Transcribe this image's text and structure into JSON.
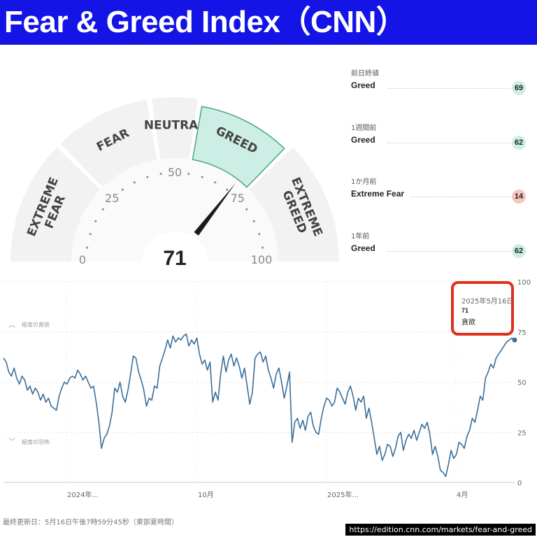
{
  "title": "Fear & Greed Index（CNN）",
  "gauge": {
    "value": 71,
    "value_text": "71",
    "segments": [
      {
        "label": "EXTREME FEAR",
        "lines": [
          "EXTREME",
          "FEAR"
        ],
        "active": false
      },
      {
        "label": "FEAR",
        "lines": [
          "FEAR"
        ],
        "active": false
      },
      {
        "label": "NEUTRAL",
        "lines": [
          "NEUTRAL"
        ],
        "active": false
      },
      {
        "label": "GREED",
        "lines": [
          "GREED"
        ],
        "active": true
      },
      {
        "label": "EXTREME GREED",
        "lines": [
          "EXTREME",
          "GREED"
        ],
        "active": false
      }
    ],
    "scale_labels": [
      "0",
      "25",
      "50",
      "75",
      "100"
    ],
    "colors": {
      "active_fill": "#cdeee4",
      "active_stroke": "#4aa57f",
      "segment": "#f2f2f2",
      "needle": "#1a1a1a"
    }
  },
  "stats": [
    {
      "label": "前日終値",
      "value": "Greed",
      "score": "69",
      "color": "#cdeee4"
    },
    {
      "label": "1週間前",
      "value": "Greed",
      "score": "62",
      "color": "#cdeee4"
    },
    {
      "label": "1か月前",
      "value": "Extreme Fear",
      "score": "14",
      "color": "#f7c6bf"
    },
    {
      "label": "1年前",
      "value": "Greed",
      "score": "62",
      "color": "#cdeee4"
    }
  ],
  "chart_data": {
    "type": "line",
    "series": [
      {
        "values": [
          62,
          60,
          55,
          53,
          57,
          52,
          49,
          53,
          51,
          46,
          48,
          44,
          47,
          45,
          41,
          44,
          40,
          42,
          38,
          37,
          36,
          43,
          47,
          50,
          49,
          52,
          53,
          52,
          56,
          54,
          51,
          53,
          50,
          47,
          48,
          40,
          30,
          17,
          22,
          24,
          28,
          35,
          47,
          45,
          50,
          43,
          40,
          46,
          54,
          63,
          62,
          55,
          51,
          46,
          38,
          42,
          41,
          48,
          47,
          58,
          62,
          66,
          71,
          67,
          73,
          70,
          72,
          71,
          73,
          74,
          68,
          71,
          69,
          72,
          64,
          59,
          61,
          56,
          60,
          40,
          45,
          41,
          54,
          63,
          55,
          61,
          64,
          58,
          62,
          58,
          52,
          57,
          48,
          39,
          45,
          62,
          64,
          65,
          60,
          63,
          56,
          52,
          47,
          54,
          57,
          50,
          42,
          48,
          55,
          20,
          30,
          32,
          27,
          31,
          26,
          33,
          35,
          28,
          25,
          24,
          32,
          38,
          42,
          41,
          38,
          40,
          47,
          45,
          42,
          39,
          45,
          48,
          43,
          36,
          42,
          40,
          43,
          32,
          37,
          30,
          22,
          14,
          18,
          11,
          14,
          19,
          18,
          13,
          17,
          23,
          25,
          16,
          21,
          24,
          22,
          26,
          21,
          25,
          29,
          27,
          30,
          24,
          14,
          18,
          13,
          6,
          5,
          3,
          9,
          16,
          12,
          14,
          20,
          19,
          17,
          23,
          26,
          32,
          30,
          36,
          43,
          41,
          52,
          55,
          59,
          57,
          62,
          64,
          66,
          68,
          70,
          71,
          72,
          71
        ]
      }
    ],
    "x_tick_labels": [
      "2024年...",
      "10月",
      "2025年...",
      "4月"
    ],
    "y_ticks": [
      0,
      25,
      50,
      75,
      100
    ],
    "ylim": [
      0,
      100
    ],
    "annotations": [
      "極度の貪欲",
      "極度の恐怖"
    ],
    "line_color": "#3a6f9c"
  },
  "highlight": {
    "date": "2025年5月16日",
    "value": "71",
    "label": "貪欲",
    "border_color": "#e0301e"
  },
  "footer": {
    "last_updated": "最終更新日：5月16日午後7時59分45秒（東部夏時間）",
    "source_url": "https://edition.cnn.com/markets/fear-and-greed"
  }
}
